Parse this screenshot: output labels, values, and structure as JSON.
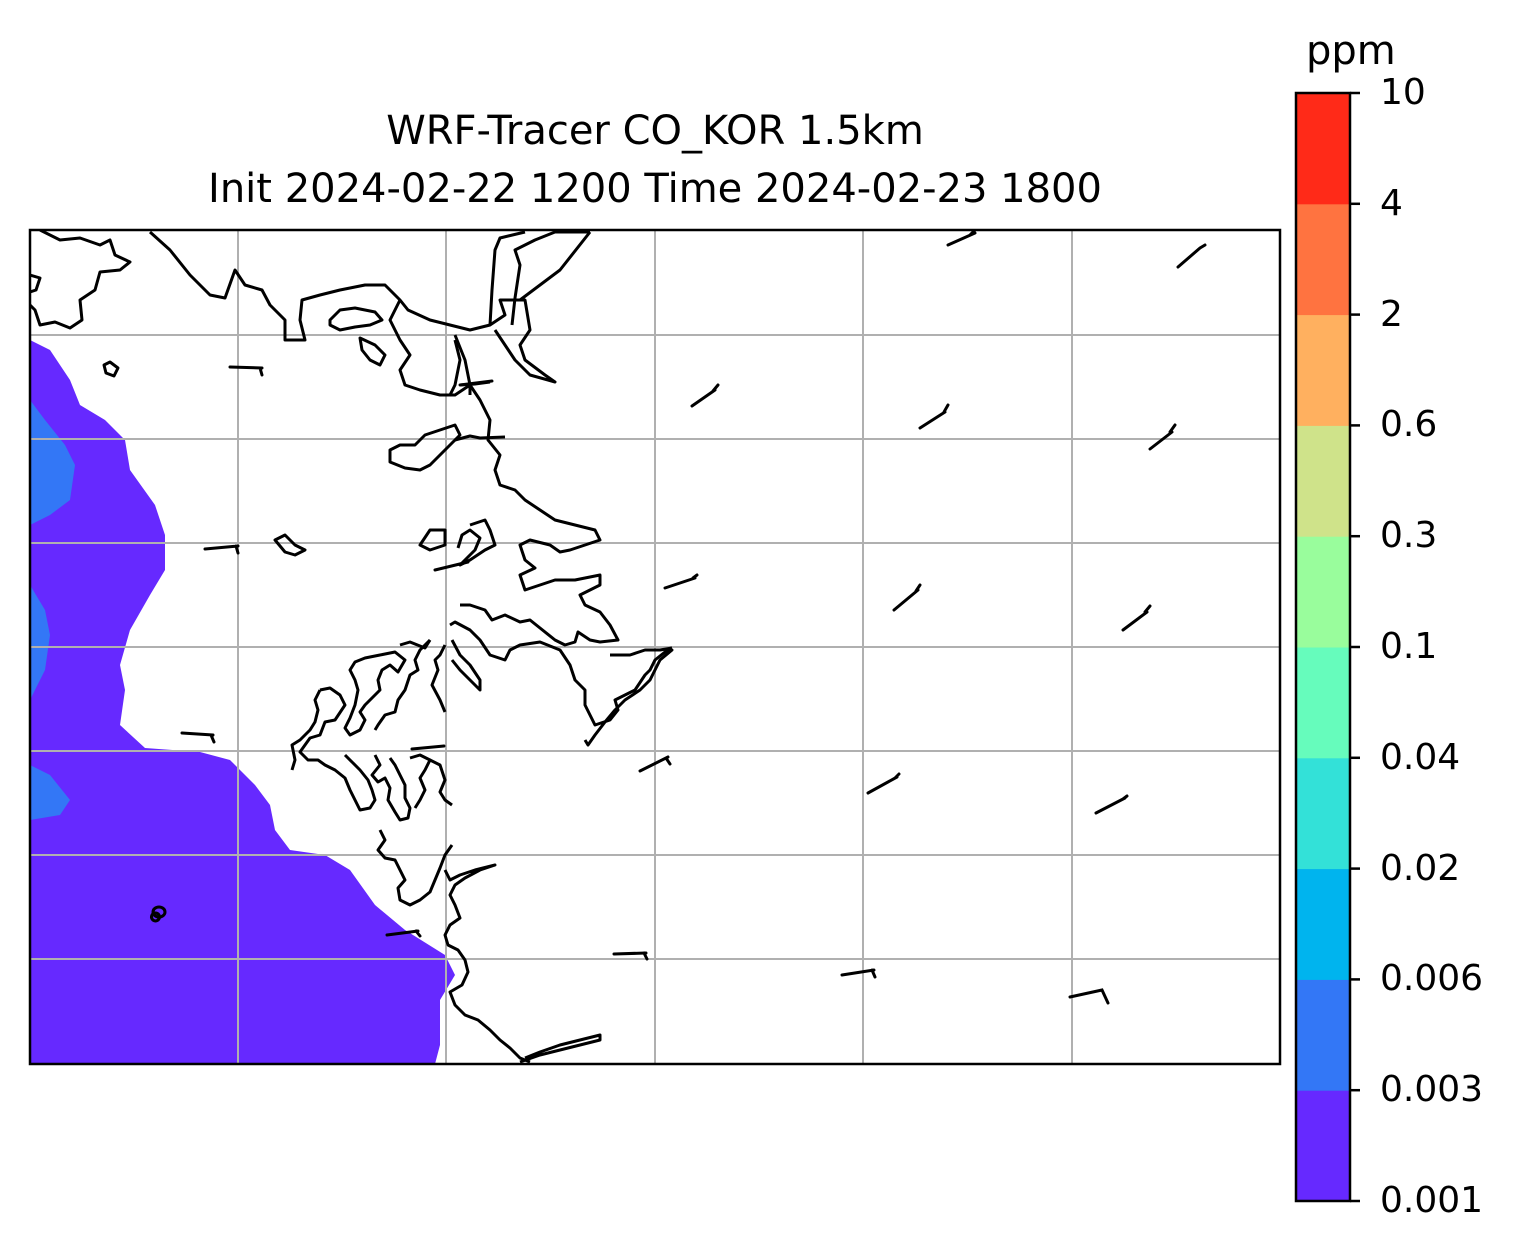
{
  "title": {
    "line1": "WRF-Tracer CO_KOR 1.5km",
    "line2": "Init 2024-02-22 1200 Time 2024-02-23 1800"
  },
  "colorbar": {
    "unit": "ppm",
    "levels": [
      "0.001",
      "0.003",
      "0.006",
      "0.02",
      "0.04",
      "0.1",
      "0.3",
      "0.6",
      "2",
      "4",
      "10"
    ],
    "colors": [
      "#6629ff",
      "#3377f6",
      "#00b4ee",
      "#33e1d8",
      "#66fcbc",
      "#99fd9c",
      "#cfe38a",
      "#ffb05f",
      "#ff7340",
      "#ff2a18"
    ]
  },
  "map": {
    "background": "#ffffff",
    "gridline_color": "#b0b0b0",
    "coastline_color": "#000000",
    "field_colors": {
      "low": "#6629ff",
      "mid": "#3377f6"
    },
    "features": [
      "coastline",
      "gridlines",
      "wind-barbs",
      "co-concentration-contours"
    ]
  }
}
